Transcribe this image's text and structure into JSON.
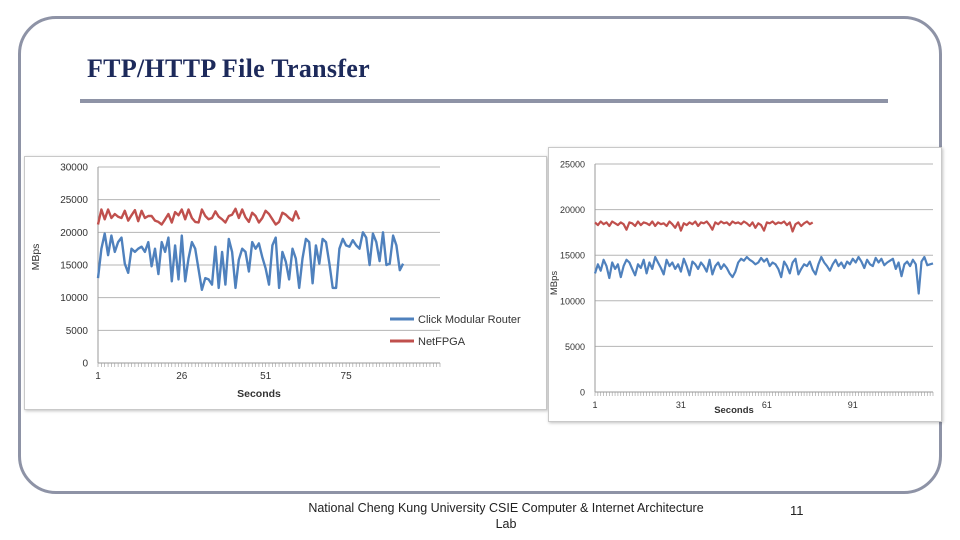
{
  "slide": {
    "title": "FTP/HTTP File Transfer",
    "footer": "National Cheng Kung University CSIE Computer & Internet Architecture Lab",
    "page_number": "11"
  },
  "chart_data": [
    {
      "type": "line",
      "title": "",
      "xlabel": "Seconds",
      "ylabel": "MBps",
      "xlim": [
        1,
        103
      ],
      "ylim": [
        0,
        30000
      ],
      "yticks": [
        "0",
        "5000",
        "10000",
        "15000",
        "20000",
        "25000",
        "30000"
      ],
      "xticks": [
        "1",
        "26",
        "51",
        "75"
      ],
      "xtick_values": [
        1,
        26,
        51,
        75
      ],
      "grid": true,
      "legend": "right",
      "series": [
        {
          "name": "Click Modular Router",
          "color": "#4f81bd",
          "x_start": 1,
          "values": [
            13000,
            17500,
            19800,
            16500,
            19500,
            17000,
            18500,
            19200,
            15200,
            13800,
            17500,
            17000,
            17500,
            17800,
            17000,
            18500,
            14800,
            17500,
            13600,
            18500,
            17000,
            19200,
            12500,
            18000,
            12800,
            19500,
            12500,
            16000,
            18500,
            17500,
            14300,
            11200,
            13000,
            12800,
            12000,
            17800,
            11500,
            17000,
            12000,
            19000,
            17000,
            11500,
            15800,
            17500,
            17000,
            14000,
            18500,
            17500,
            18300,
            16200,
            14500,
            12000,
            18000,
            19200,
            11500,
            17000,
            15500,
            12800,
            17500,
            16000,
            11500,
            16000,
            19000,
            18500,
            12200,
            18000,
            15200,
            19000,
            18500,
            15200,
            11500,
            11500,
            17500,
            19000,
            18000,
            17800,
            18800,
            18000,
            17500,
            20000,
            19200,
            15000,
            19800,
            18500,
            15600,
            20000,
            15000,
            15200,
            19500,
            18000,
            14200,
            15200
          ]
        },
        {
          "name": "NetFPGA",
          "color": "#c0504d",
          "x_start": 1,
          "values": [
            21200,
            23500,
            22000,
            23500,
            22200,
            22800,
            22400,
            22200,
            23300,
            21800,
            22600,
            23400,
            21700,
            23300,
            22200,
            22500,
            22500,
            21800,
            21600,
            21200,
            22000,
            22800,
            21500,
            23100,
            22600,
            23500,
            22000,
            23500,
            22200,
            21600,
            21500,
            23500,
            22500,
            22000,
            22200,
            23200,
            22400,
            22000,
            21500,
            22500,
            22700,
            23600,
            22200,
            23500,
            22300,
            21600,
            23000,
            22500,
            21500,
            22200,
            23300,
            22800,
            22000,
            21200,
            21600,
            23000,
            22700,
            22200,
            21800,
            23200,
            22000
          ]
        }
      ]
    },
    {
      "type": "line",
      "title": "",
      "xlabel": "Seconds",
      "ylabel": "MBps",
      "xlim": [
        1,
        119
      ],
      "ylim": [
        0,
        25000
      ],
      "yticks": [
        "0",
        "5000",
        "10000",
        "15000",
        "20000",
        "25000"
      ],
      "xticks": [
        "1",
        "31",
        "61",
        "91"
      ],
      "xtick_values": [
        1,
        31,
        61,
        91
      ],
      "grid": true,
      "legend": "none",
      "series": [
        {
          "name": "Click Modular Router",
          "color": "#4f81bd",
          "x_start": 1,
          "values": [
            13000,
            14000,
            13300,
            14500,
            13800,
            12500,
            14200,
            13500,
            14000,
            12600,
            13800,
            14500,
            14200,
            13500,
            12800,
            14000,
            13600,
            14500,
            13000,
            14200,
            13500,
            14800,
            14200,
            13600,
            12900,
            14500,
            13800,
            14200,
            13500,
            14000,
            13200,
            14600,
            13800,
            12800,
            14300,
            14000,
            13500,
            14200,
            13800,
            13200,
            14500,
            12900,
            13800,
            14200,
            13500,
            14000,
            13600,
            13000,
            12600,
            13200,
            14200,
            14600,
            14400,
            14800,
            14500,
            14300,
            14000,
            14200,
            14700,
            14300,
            14600,
            13800,
            14200,
            14000,
            13500,
            12600,
            14300,
            13800,
            13000,
            14200,
            14600,
            12900,
            13500,
            14000,
            13800,
            14300,
            13400,
            12900,
            14000,
            14800,
            14200,
            13800,
            13300,
            14000,
            14500,
            13800,
            14200,
            13600,
            14300,
            14000,
            14600,
            14200,
            14800,
            14300,
            13600,
            14500,
            14000,
            13800,
            14700,
            14200,
            14600,
            13900,
            14200,
            14400,
            14600,
            13500,
            14200,
            12700,
            14000,
            14300,
            13800,
            14500,
            14000,
            10800,
            14300,
            14800,
            13900,
            14000,
            14100
          ]
        },
        {
          "name": "NetFPGA",
          "color": "#c0504d",
          "x_start": 1,
          "values": [
            18600,
            18300,
            18700,
            18400,
            18600,
            18200,
            18700,
            18500,
            18300,
            18600,
            18400,
            17800,
            18600,
            18500,
            18200,
            18700,
            18300,
            18600,
            18500,
            18300,
            18700,
            18200,
            18600,
            18400,
            18500,
            18200,
            18700,
            18400,
            18000,
            18600,
            17700,
            18500,
            18300,
            18600,
            18400,
            18700,
            18200,
            18600,
            18500,
            18700,
            18300,
            17800,
            18600,
            18400,
            18700,
            18500,
            18600,
            18300,
            18700,
            18500,
            18600,
            18400,
            18700,
            18500,
            18200,
            18600,
            18000,
            18500,
            18300,
            17700,
            18600,
            18500,
            18700,
            18400,
            18600,
            18500,
            18700,
            18300,
            18600,
            17600,
            18400,
            18600,
            18200,
            18500,
            18700,
            18400,
            18600
          ]
        }
      ]
    }
  ]
}
